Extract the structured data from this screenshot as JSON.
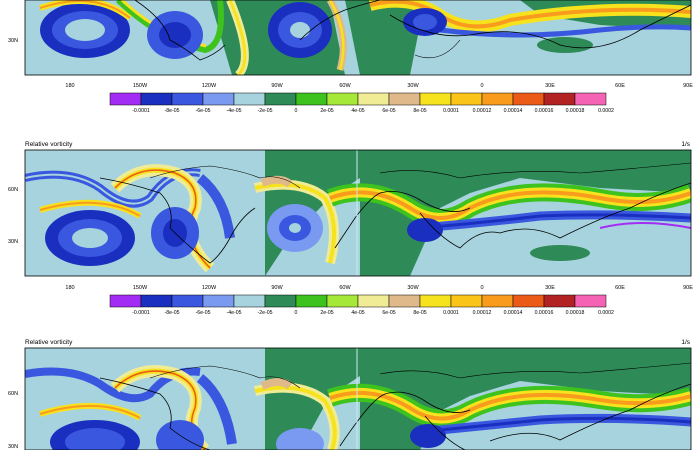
{
  "panels": [
    {
      "title": "",
      "units": "",
      "lat_labels": [
        "30N"
      ],
      "lon_labels": [
        "180",
        "150W",
        "120W",
        "90W",
        "60W",
        "30W",
        "0",
        "30E",
        "60E",
        "90E"
      ],
      "colorbar_labels": [
        "-0.0001",
        "-8e-05",
        "-6e-05",
        "-4e-05",
        "-2e-05",
        "0",
        "2e-05",
        "4e-05",
        "6e-05",
        "8e-05",
        "0.0001",
        "0.00012",
        "0.00014",
        "0.00016",
        "0.00018",
        "0.0002"
      ]
    },
    {
      "title": "Relative vorticity",
      "units": "1/s",
      "lat_labels": [
        "60N",
        "30N"
      ],
      "lon_labels": [
        "180",
        "150W",
        "120W",
        "90W",
        "60W",
        "30W",
        "0",
        "30E",
        "60E",
        "90E"
      ],
      "colorbar_labels": [
        "-0.0001",
        "-8e-05",
        "-6e-05",
        "-4e-05",
        "-2e-05",
        "0",
        "2e-05",
        "4e-05",
        "6e-05",
        "8e-05",
        "0.0001",
        "0.00012",
        "0.00014",
        "0.00016",
        "0.00018",
        "0.0002"
      ]
    },
    {
      "title": "Relative vorticity",
      "units": "1/s",
      "lat_labels": [
        "60N",
        "30N"
      ],
      "lon_labels": [],
      "colorbar_labels": []
    }
  ],
  "colorbar_colors": [
    "#a32cf5",
    "#1a2fbf",
    "#3a58df",
    "#7a9af2",
    "#a6d3de",
    "#2e8b57",
    "#3ec21e",
    "#a6e838",
    "#f0ec96",
    "#dfb98a",
    "#f7e21e",
    "#fbc419",
    "#f99b1c",
    "#ec5a17",
    "#b22222",
    "#f564b4"
  ]
}
